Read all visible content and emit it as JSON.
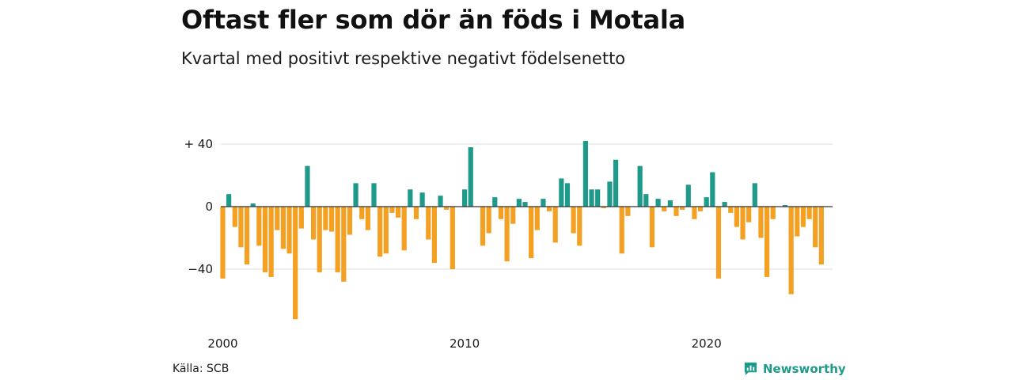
{
  "title": "Oftast fler som dör än föds i Motala",
  "subtitle": "Kvartal med positivt respektive negativt födelsenetto",
  "source": "Källa: SCB",
  "brand": {
    "name": "Newsworthy",
    "icon": "newsworthy-logo-icon"
  },
  "colors": {
    "positive": "#1d9a8a",
    "negative": "#f4a023",
    "grid": "#dcdcdc",
    "zero_line": "#333333"
  },
  "chart_data": {
    "type": "bar",
    "title": "Oftast fler som dör än föds i Motala",
    "subtitle": "Kvartal med positivt respektive negativt födelsenetto",
    "xlabel": "",
    "ylabel": "",
    "ylim": [
      -72,
      44
    ],
    "y_ticks": [
      {
        "value": 40,
        "label": "+ 40"
      },
      {
        "value": 0,
        "label": "0"
      },
      {
        "value": -40,
        "label": "−40"
      }
    ],
    "x_ticks": [
      {
        "year": 2000,
        "label": "2000"
      },
      {
        "year": 2010,
        "label": "2010"
      },
      {
        "year": 2020,
        "label": "2020"
      }
    ],
    "grid": true,
    "x_start_year": 2000,
    "periods_per_year": 4,
    "series": [
      {
        "values": [
          -46,
          8,
          -13,
          -26,
          -37,
          2,
          -25,
          -42,
          -45,
          -15,
          -27,
          -30,
          -72,
          -14,
          26,
          -21,
          -42,
          -15,
          -16,
          -42,
          -48,
          -18,
          15,
          -8,
          -15,
          15,
          -32,
          -30,
          -4,
          -7,
          -28,
          11,
          -8,
          9,
          -21,
          -36,
          7,
          -2,
          -40,
          0,
          11,
          38,
          0,
          -25,
          -17,
          6,
          -8,
          -35,
          -11,
          5,
          3,
          -33,
          -15,
          5,
          -3,
          -23,
          18,
          15,
          -17,
          -25,
          42,
          11,
          11,
          -1,
          16,
          30,
          -30,
          -6,
          0,
          26,
          8,
          -26,
          5,
          -3,
          4,
          -6,
          -2,
          14,
          -8,
          -3,
          6,
          22,
          -46,
          3,
          -4,
          -13,
          -21,
          -10,
          15,
          -20,
          -45,
          -8,
          0,
          1,
          -56,
          -19,
          -13,
          -8,
          -26,
          -37
        ]
      }
    ]
  }
}
